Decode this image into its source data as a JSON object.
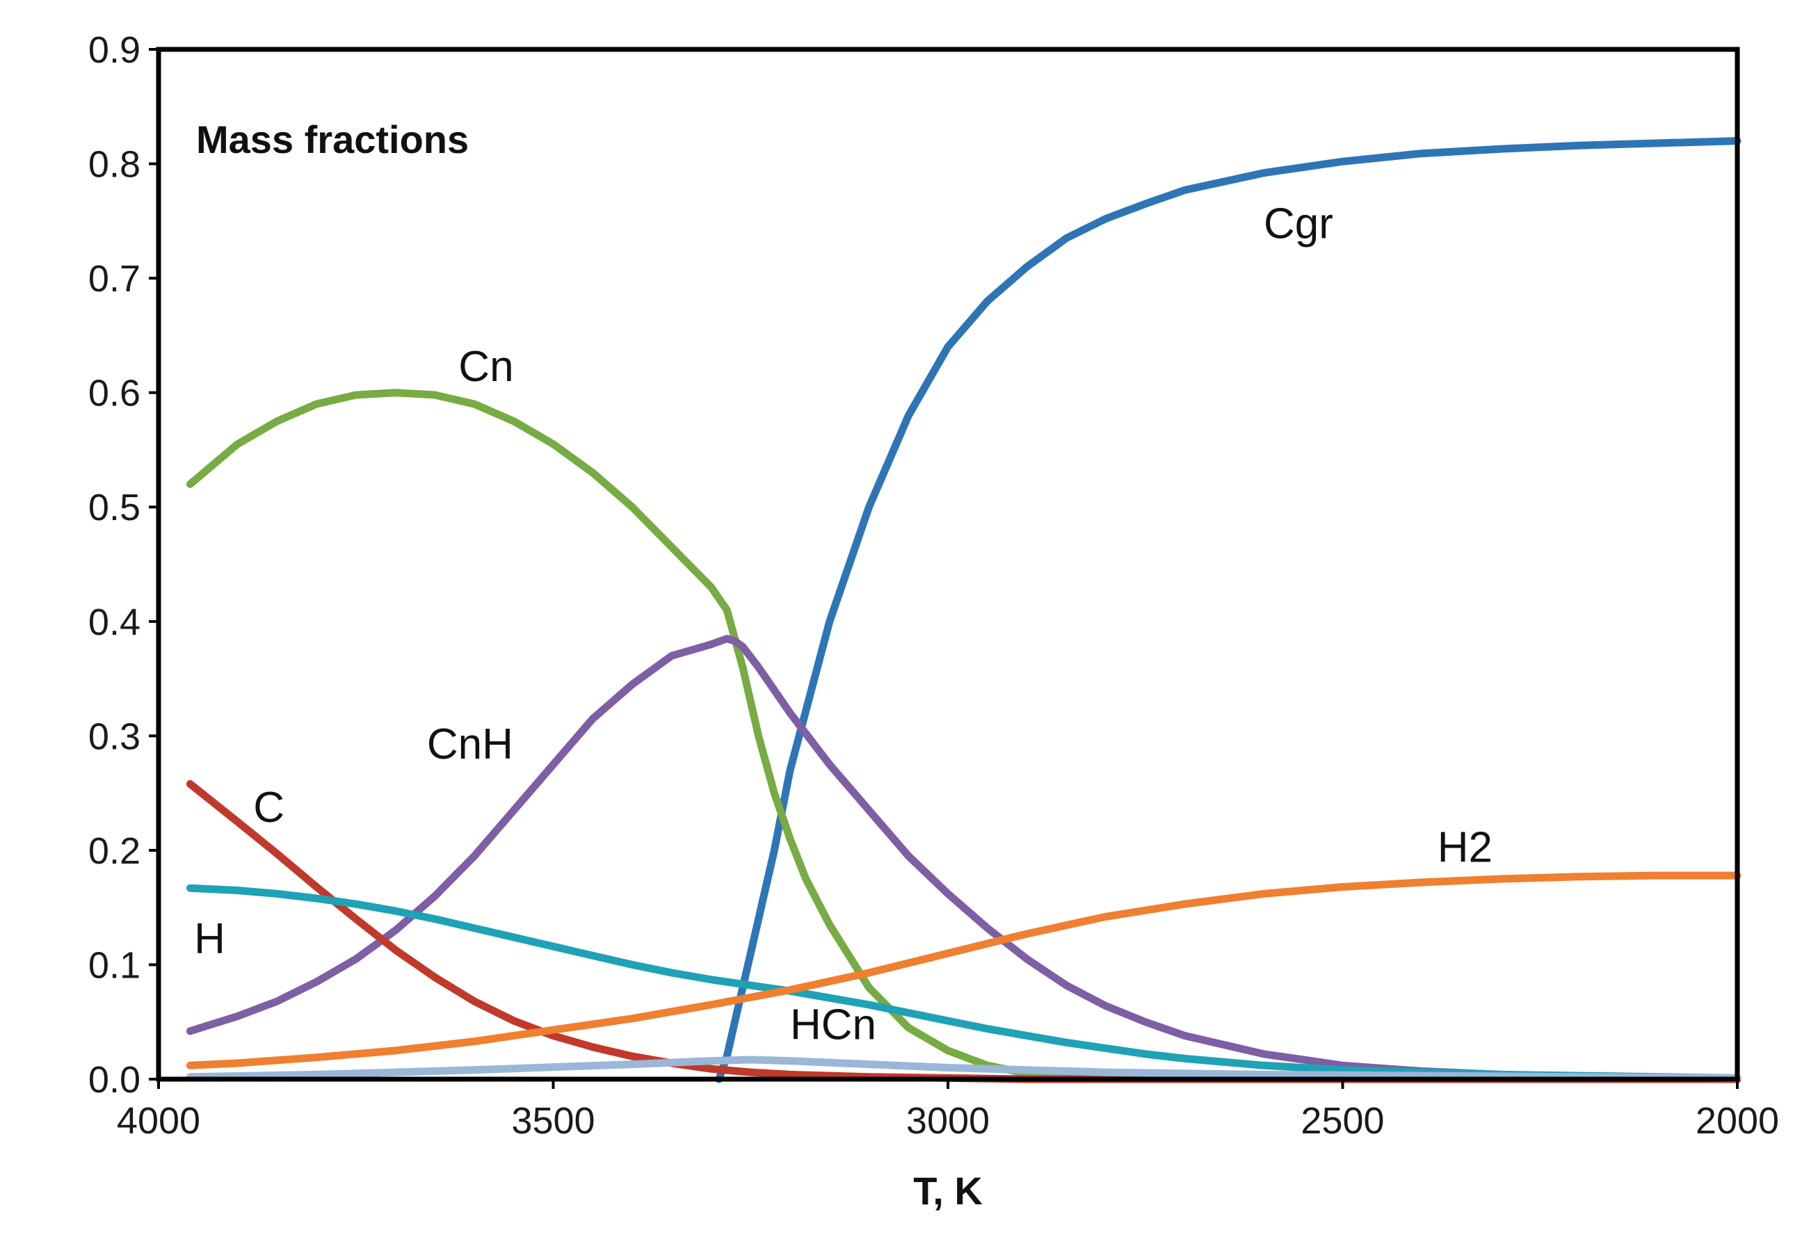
{
  "chart_data": {
    "type": "line",
    "title": "Mass fractions",
    "xlabel": "T, K",
    "ylabel": "",
    "xlim": [
      4000,
      2000
    ],
    "ylim": [
      0.0,
      0.9
    ],
    "x_ticks": [
      4000,
      3500,
      3000,
      2500,
      2000
    ],
    "x_tick_labels": [
      "4000",
      "3500",
      "3000",
      "2500",
      "2000"
    ],
    "y_ticks": [
      0.0,
      0.1,
      0.2,
      0.3,
      0.4,
      0.5,
      0.6,
      0.7,
      0.8,
      0.9
    ],
    "y_tick_labels": [
      "0.0",
      "0.1",
      "0.2",
      "0.3",
      "0.4",
      "0.5",
      "0.6",
      "0.7",
      "0.8",
      "0.9"
    ],
    "grid": false,
    "legend": "none (inline labels)",
    "series": [
      {
        "name": "Cgr",
        "label": "Cgr",
        "color": "#2e75b6",
        "label_at": [
          2600,
          0.735
        ],
        "x": [
          3290,
          3280,
          3270,
          3250,
          3220,
          3200,
          3150,
          3100,
          3050,
          3000,
          2950,
          2900,
          2850,
          2800,
          2750,
          2700,
          2600,
          2500,
          2400,
          2300,
          2200,
          2100,
          2000
        ],
        "y": [
          0.0,
          0.02,
          0.05,
          0.11,
          0.2,
          0.27,
          0.4,
          0.5,
          0.58,
          0.64,
          0.68,
          0.71,
          0.735,
          0.752,
          0.765,
          0.777,
          0.792,
          0.802,
          0.809,
          0.813,
          0.816,
          0.818,
          0.82
        ]
      },
      {
        "name": "Cn",
        "label": "Cn",
        "color": "#77ab43",
        "label_at": [
          3620,
          0.61
        ],
        "x": [
          3960,
          3900,
          3850,
          3800,
          3750,
          3700,
          3650,
          3600,
          3550,
          3500,
          3450,
          3400,
          3350,
          3300,
          3280,
          3260,
          3240,
          3220,
          3200,
          3180,
          3150,
          3100,
          3050,
          3000,
          2950,
          2900,
          2850,
          2800,
          2700,
          2600,
          2500,
          2400,
          2200,
          2000
        ],
        "y": [
          0.52,
          0.555,
          0.575,
          0.59,
          0.598,
          0.6,
          0.598,
          0.59,
          0.575,
          0.555,
          0.53,
          0.5,
          0.465,
          0.43,
          0.41,
          0.36,
          0.3,
          0.25,
          0.21,
          0.175,
          0.135,
          0.08,
          0.045,
          0.025,
          0.012,
          0.005,
          0.002,
          0.001,
          0.0,
          0.0,
          0.0,
          0.0,
          0.0,
          0.0
        ]
      },
      {
        "name": "CnH",
        "label": "CnH",
        "color": "#7e5ea5",
        "label_at": [
          3660,
          0.28
        ],
        "x": [
          3960,
          3900,
          3850,
          3800,
          3750,
          3700,
          3650,
          3600,
          3550,
          3500,
          3450,
          3400,
          3350,
          3300,
          3280,
          3270,
          3260,
          3240,
          3200,
          3150,
          3100,
          3050,
          3000,
          2950,
          2900,
          2850,
          2800,
          2750,
          2700,
          2600,
          2500,
          2400,
          2300,
          2200,
          2100,
          2000
        ],
        "y": [
          0.042,
          0.055,
          0.068,
          0.085,
          0.105,
          0.13,
          0.16,
          0.195,
          0.235,
          0.275,
          0.315,
          0.345,
          0.37,
          0.38,
          0.385,
          0.383,
          0.378,
          0.36,
          0.32,
          0.275,
          0.235,
          0.195,
          0.162,
          0.132,
          0.105,
          0.082,
          0.064,
          0.05,
          0.038,
          0.022,
          0.012,
          0.007,
          0.004,
          0.002,
          0.001,
          0.0
        ]
      },
      {
        "name": "C",
        "label": "C",
        "color": "#c0392b",
        "label_at": [
          3880,
          0.225
        ],
        "x": [
          3960,
          3900,
          3850,
          3800,
          3750,
          3700,
          3650,
          3600,
          3550,
          3500,
          3450,
          3400,
          3350,
          3300,
          3250,
          3200,
          3100,
          3000,
          2900,
          2800,
          2500,
          2000
        ],
        "y": [
          0.258,
          0.225,
          0.197,
          0.168,
          0.14,
          0.113,
          0.089,
          0.068,
          0.051,
          0.038,
          0.028,
          0.02,
          0.014,
          0.009,
          0.006,
          0.004,
          0.002,
          0.001,
          0.0,
          0.0,
          0.0,
          0.0
        ]
      },
      {
        "name": "H",
        "label": "H",
        "color": "#1fa2b5",
        "label_at": [
          3955,
          0.11
        ],
        "x": [
          3960,
          3900,
          3850,
          3800,
          3750,
          3700,
          3650,
          3600,
          3550,
          3500,
          3450,
          3400,
          3350,
          3300,
          3250,
          3200,
          3150,
          3100,
          3050,
          3000,
          2950,
          2900,
          2850,
          2800,
          2750,
          2700,
          2600,
          2500,
          2400,
          2300,
          2200,
          2100,
          2000
        ],
        "y": [
          0.167,
          0.165,
          0.162,
          0.158,
          0.153,
          0.147,
          0.14,
          0.132,
          0.124,
          0.116,
          0.108,
          0.1,
          0.093,
          0.087,
          0.082,
          0.077,
          0.071,
          0.065,
          0.058,
          0.051,
          0.044,
          0.038,
          0.032,
          0.027,
          0.022,
          0.018,
          0.012,
          0.008,
          0.006,
          0.004,
          0.003,
          0.002,
          0.001
        ]
      },
      {
        "name": "H2",
        "label": "H2",
        "color": "#f07f2f",
        "label_at": [
          2380,
          0.19
        ],
        "x": [
          3960,
          3900,
          3800,
          3700,
          3600,
          3500,
          3400,
          3300,
          3200,
          3100,
          3000,
          2900,
          2800,
          2700,
          2600,
          2500,
          2400,
          2300,
          2200,
          2100,
          2000
        ],
        "y": [
          0.012,
          0.014,
          0.019,
          0.025,
          0.033,
          0.043,
          0.053,
          0.065,
          0.078,
          0.093,
          0.11,
          0.127,
          0.142,
          0.153,
          0.162,
          0.168,
          0.172,
          0.175,
          0.177,
          0.178,
          0.178
        ]
      },
      {
        "name": "HCn",
        "label": "HCn",
        "color": "#9bb7d8",
        "label_at": [
          3200,
          0.035
        ],
        "x": [
          3960,
          3800,
          3600,
          3400,
          3300,
          3250,
          3200,
          3100,
          3000,
          2900,
          2800,
          2600,
          2400,
          2200,
          2000
        ],
        "y": [
          0.002,
          0.004,
          0.008,
          0.013,
          0.016,
          0.017,
          0.016,
          0.013,
          0.01,
          0.008,
          0.006,
          0.004,
          0.003,
          0.002,
          0.001
        ]
      }
    ]
  }
}
